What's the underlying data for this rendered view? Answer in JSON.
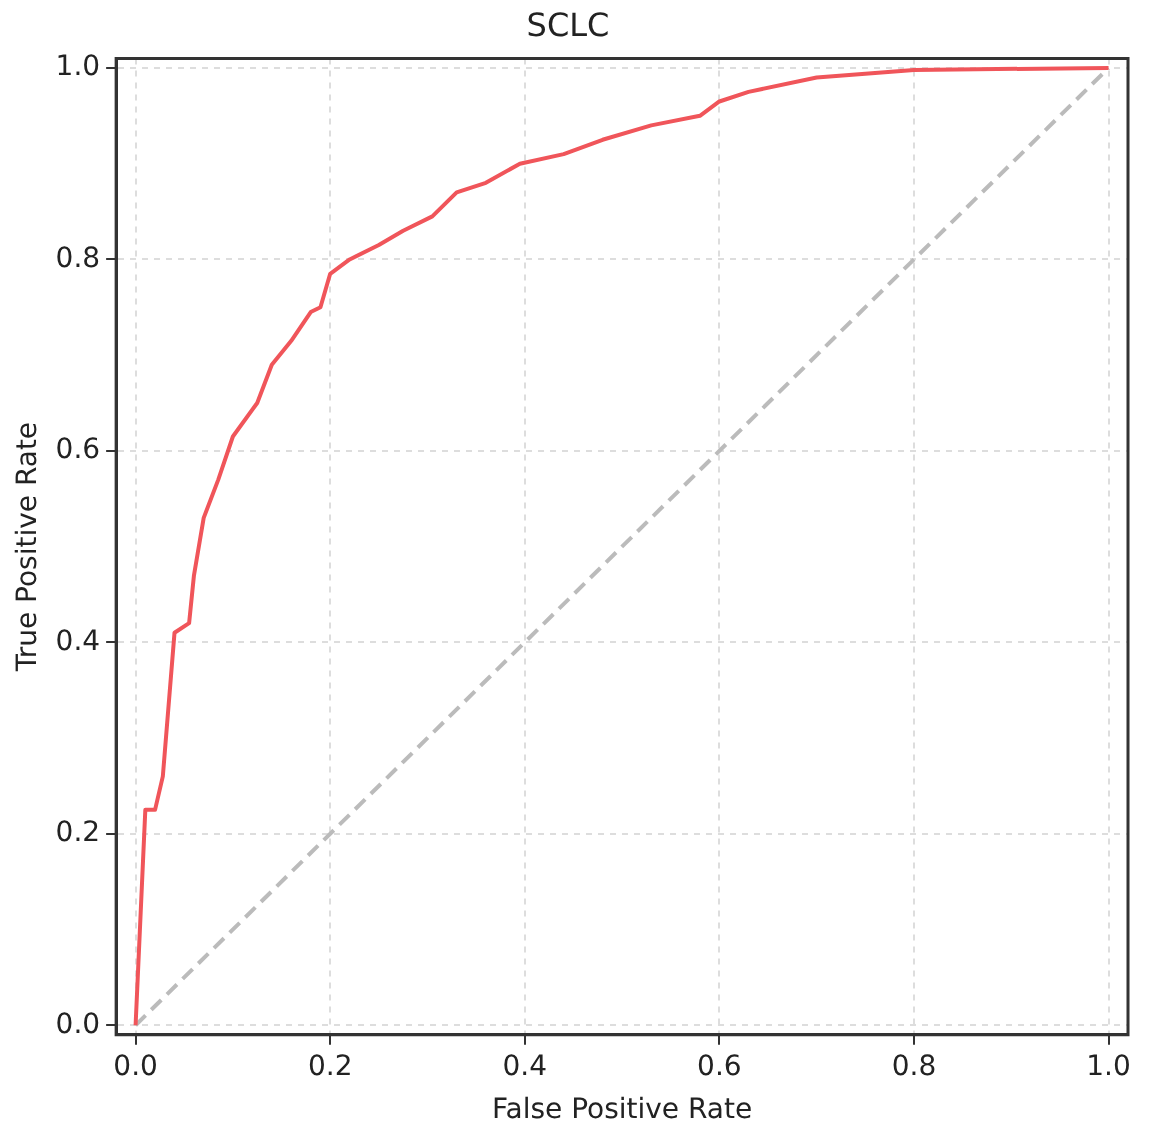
{
  "chart_data": {
    "type": "line",
    "title": "SCLC",
    "xlabel": "False Positive Rate",
    "ylabel": "True Positive Rate",
    "xlim": [
      -0.02,
      1.02
    ],
    "ylim": [
      -0.01,
      1.01
    ],
    "xticks": [
      {
        "value": 0,
        "label": "0.0"
      },
      0.2,
      0.4,
      0.6,
      0.8,
      {
        "value": 1,
        "label": "1.0"
      }
    ],
    "yticks": [
      {
        "value": 0,
        "label": "0.0"
      },
      0.2,
      0.4,
      0.6,
      0.8,
      {
        "value": 1,
        "label": "1.0"
      }
    ],
    "grid": true,
    "legend": false,
    "marker": "none",
    "series": [
      {
        "color": "#f0555a",
        "line_style": "solid",
        "x": [
          0,
          0.01,
          0.02,
          0.028,
          0.04,
          0.055,
          0.06,
          0.07,
          0.085,
          0.1,
          0.125,
          0.14,
          0.16,
          0.18,
          0.19,
          0.2,
          0.22,
          0.25,
          0.275,
          0.305,
          0.33,
          0.36,
          0.395,
          0.44,
          0.48,
          0.53,
          0.58,
          0.6,
          0.63,
          0.7,
          0.8,
          1
        ],
        "values": [
          0,
          0.225,
          0.225,
          0.26,
          0.41,
          0.42,
          0.47,
          0.53,
          0.57,
          0.615,
          0.65,
          0.69,
          0.715,
          0.745,
          0.75,
          0.785,
          0.8,
          0.815,
          0.83,
          0.845,
          0.87,
          0.88,
          0.9,
          0.91,
          0.925,
          0.94,
          0.95,
          0.965,
          0.975,
          0.99,
          0.998,
          1
        ]
      },
      {
        "color": "#bbbbbb",
        "line_style": "dashed",
        "x": [
          0,
          1
        ],
        "values": [
          0,
          1
        ]
      }
    ]
  }
}
